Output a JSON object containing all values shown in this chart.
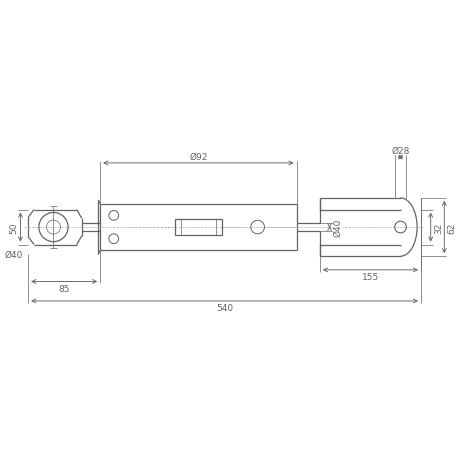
{
  "bg_color": "#ffffff",
  "line_color": "#636363",
  "dim_color": "#636363",
  "center_line_color": "#b0b0b0",
  "figsize": [
    4.6,
    4.6
  ],
  "dpi": 100,
  "annotations": {
    "cylinder_bore": "Ø92",
    "rod_dia": "Ø40",
    "fork_hole": "Ø28",
    "ball": "Ø40",
    "dim_50": "50",
    "dim_85": "85",
    "dim_155": "155",
    "dim_540": "540",
    "dim_32": "32",
    "dim_62": "62"
  }
}
